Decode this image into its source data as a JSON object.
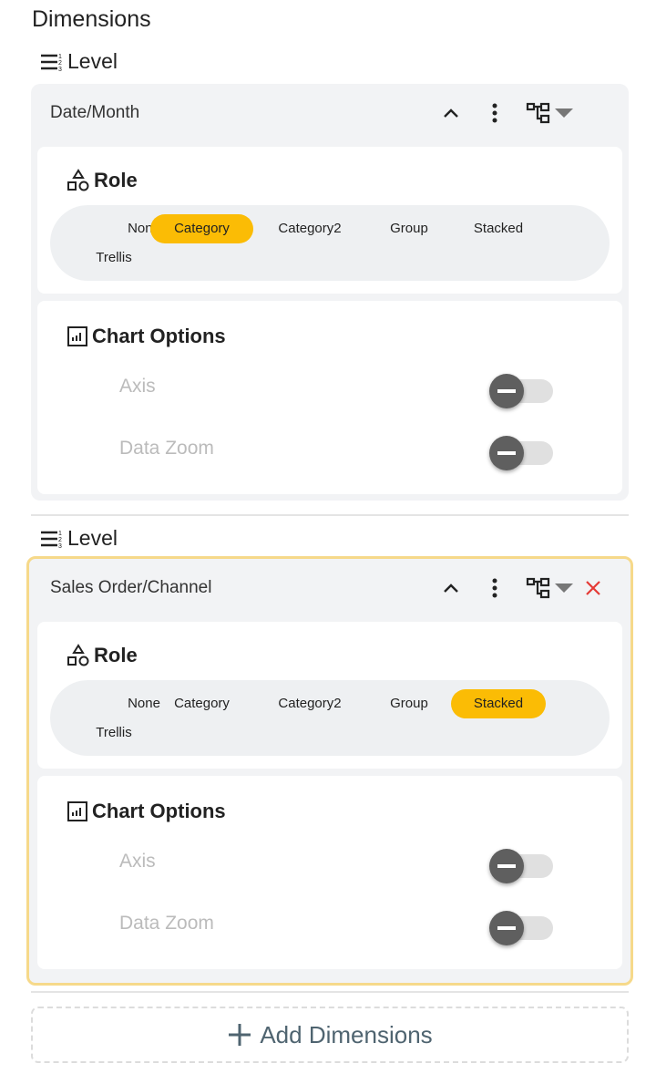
{
  "title": "Dimensions",
  "level_label": "Level",
  "role_label": "Role",
  "chart_options_label": "Chart Options",
  "role_options": [
    "None",
    "Category",
    "Category2",
    "Group",
    "Stacked",
    "Trellis"
  ],
  "dimensions": [
    {
      "name": "Date/Month",
      "selected_role": "Category",
      "active": false,
      "removable": false,
      "options": [
        {
          "label": "Axis",
          "enabled": false
        },
        {
          "label": "Data Zoom",
          "enabled": false
        }
      ]
    },
    {
      "name": "Sales Order/Channel",
      "selected_role": "Stacked",
      "active": true,
      "removable": true,
      "options": [
        {
          "label": "Axis",
          "enabled": false
        },
        {
          "label": "Data Zoom",
          "enabled": false
        }
      ]
    }
  ],
  "add_button_label": "Add Dimensions",
  "colors": {
    "selected_chip": "#fbbc05",
    "active_border": "#f6d98a",
    "remove": "#e53935"
  }
}
